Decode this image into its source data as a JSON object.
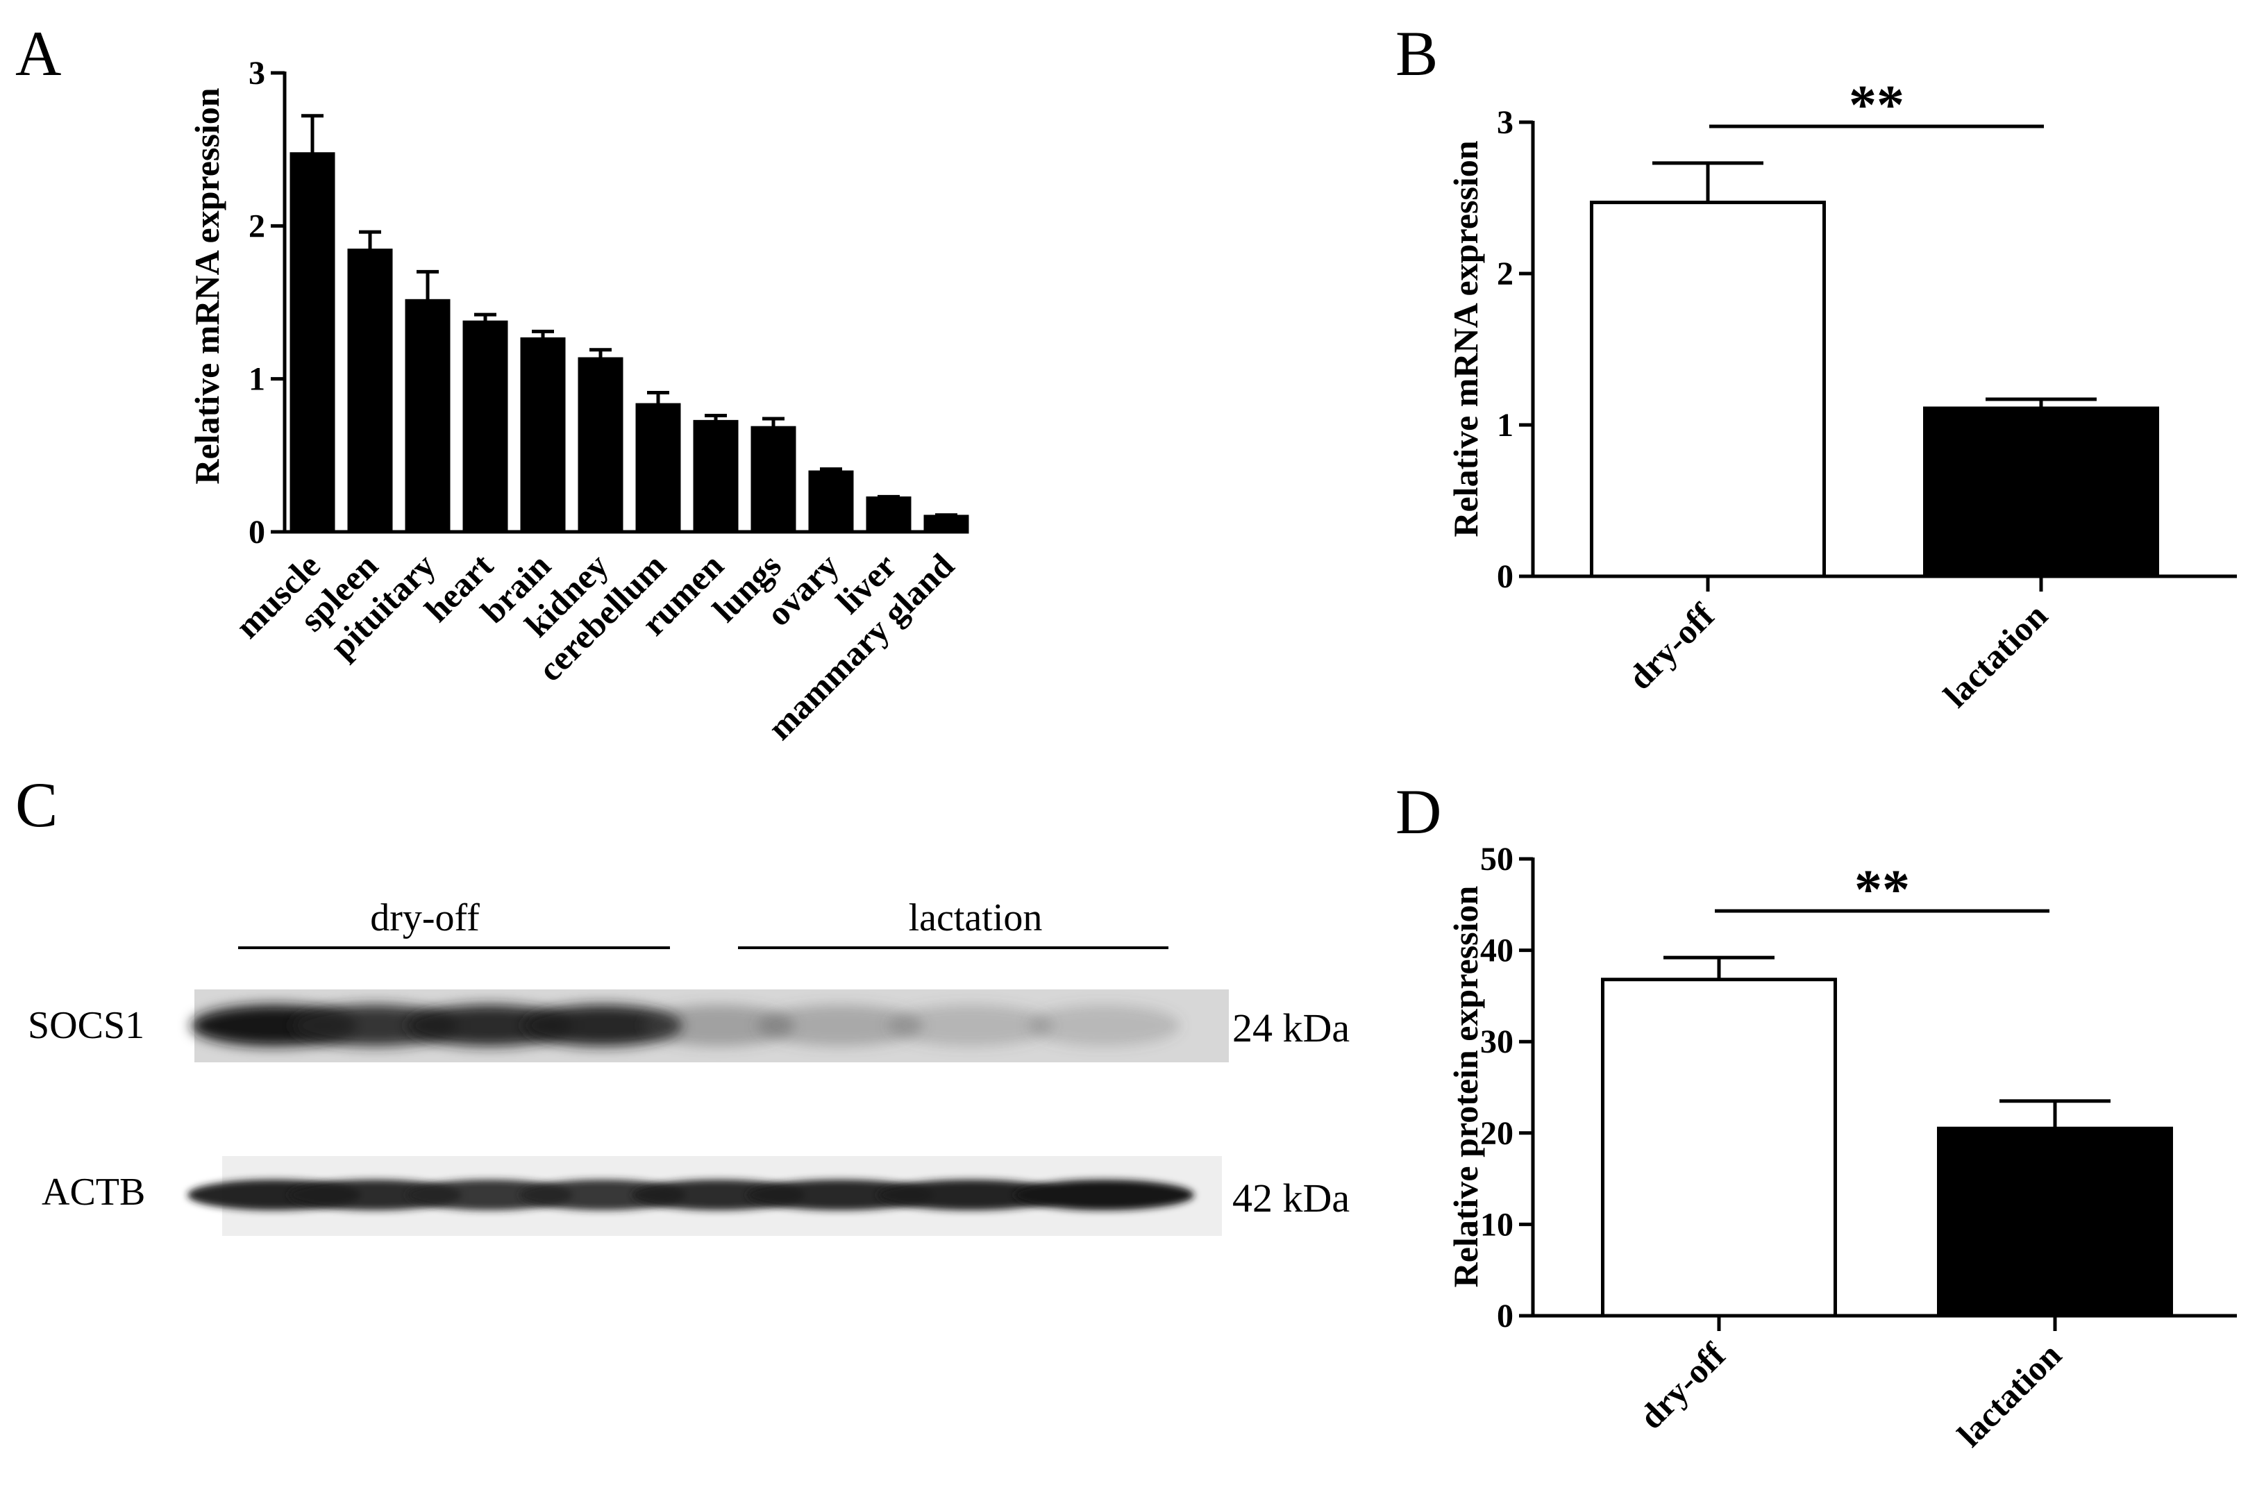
{
  "panels": {
    "A": "A",
    "B": "B",
    "C": "C",
    "D": "D"
  },
  "chart_data": [
    {
      "panel": "A",
      "type": "bar",
      "ylabel": "Relative mRNA expression",
      "ylim": [
        0,
        3
      ],
      "yticks": [
        "0",
        "1",
        "2",
        "3"
      ],
      "categories": [
        "muscle",
        "spleen",
        "pituitary",
        "heart",
        "brain",
        "kidney",
        "cerebellum",
        "rumen",
        "lungs",
        "ovary",
        "liver",
        "mammary gland"
      ],
      "values": [
        2.47,
        1.84,
        1.51,
        1.37,
        1.26,
        1.13,
        0.83,
        0.72,
        0.68,
        0.39,
        0.22,
        0.1
      ],
      "errors": [
        0.25,
        0.12,
        0.19,
        0.05,
        0.05,
        0.06,
        0.08,
        0.04,
        0.06,
        0.02,
        0.01,
        0.01
      ],
      "bar_color": "#000000"
    },
    {
      "panel": "B",
      "type": "bar",
      "ylabel": "Relative mRNA expression",
      "ylim": [
        0,
        3
      ],
      "yticks": [
        "0",
        "1",
        "2",
        "3"
      ],
      "categories": [
        "dry-off",
        "lactation"
      ],
      "values": [
        2.47,
        1.11
      ],
      "errors": [
        0.26,
        0.06
      ],
      "bar_fill": [
        "#ffffff",
        "#000000"
      ],
      "significance": "**"
    },
    {
      "panel": "D",
      "type": "bar",
      "ylabel": "Relative protein expression",
      "ylim": [
        0,
        50
      ],
      "yticks": [
        "0",
        "10",
        "20",
        "30",
        "40",
        "50"
      ],
      "categories": [
        "dry-off",
        "lactation"
      ],
      "values": [
        36.8,
        20.5
      ],
      "errors": [
        2.4,
        3.0
      ],
      "bar_fill": [
        "#ffffff",
        "#000000"
      ],
      "significance": "**"
    }
  ],
  "blot": {
    "groups": [
      "dry-off",
      "lactation"
    ],
    "rows": [
      {
        "label": "SOCS1",
        "size": "24 kDa",
        "intensities": [
          0.95,
          0.85,
          0.88,
          0.9,
          0.35,
          0.3,
          0.22,
          0.2
        ]
      },
      {
        "label": "ACTB",
        "size": "42 kDa",
        "intensities": [
          0.92,
          0.88,
          0.85,
          0.85,
          0.88,
          0.9,
          0.92,
          0.95
        ]
      }
    ]
  }
}
